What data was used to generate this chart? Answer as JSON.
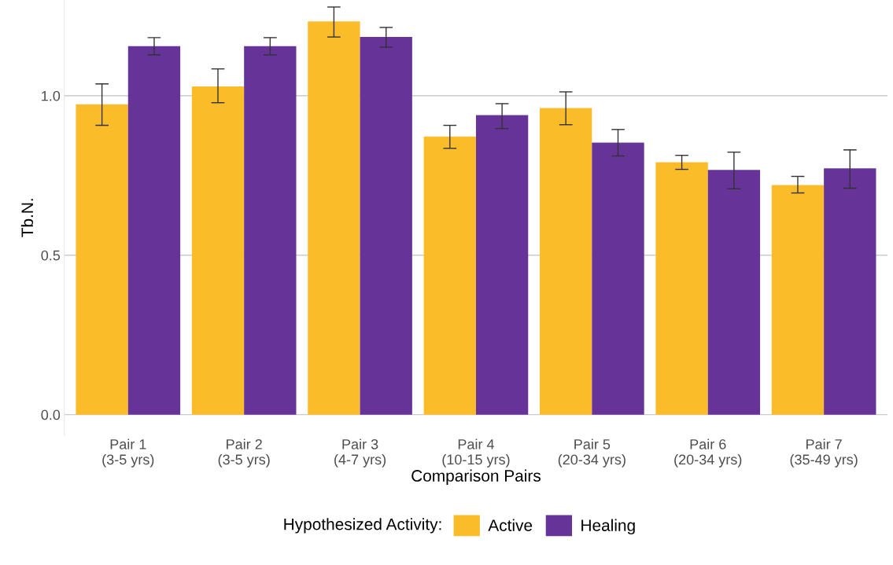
{
  "chart_data": {
    "type": "bar",
    "xlabel": "Comparison Pairs",
    "ylabel": "Tb.N.",
    "legend_title": "Hypothesized Activity:",
    "categories": [
      "Pair 1\n(3-5 yrs)",
      "Pair 2\n(3-5 yrs)",
      "Pair 3\n(4-7 yrs)",
      "Pair 4\n(10-15 yrs)",
      "Pair 5\n(20-34 yrs)",
      "Pair 6\n(20-34 yrs)",
      "Pair 7\n(35-49 yrs)"
    ],
    "series": [
      {
        "name": "Active",
        "color": "#fbbc2a",
        "values": [
          0.973,
          1.029,
          1.233,
          0.872,
          0.961,
          0.791,
          0.72
        ],
        "errors": [
          [
            0.907,
            1.037
          ],
          [
            0.978,
            1.084
          ],
          [
            1.184,
            1.278
          ],
          [
            0.835,
            0.907
          ],
          [
            0.909,
            1.012
          ],
          [
            0.769,
            0.813
          ],
          [
            0.695,
            0.747
          ]
        ]
      },
      {
        "name": "Healing",
        "color": "#663399",
        "values": [
          1.155,
          1.155,
          1.184,
          0.939,
          0.853,
          0.767,
          0.772
        ],
        "errors": [
          [
            1.128,
            1.182
          ],
          [
            1.128,
            1.182
          ],
          [
            1.152,
            1.214
          ],
          [
            0.897,
            0.975
          ],
          [
            0.811,
            0.894
          ],
          [
            0.708,
            0.823
          ],
          [
            0.71,
            0.83
          ]
        ]
      }
    ],
    "ylim": [
      -0.064,
      1.3
    ],
    "yticks": [
      {
        "value": 0,
        "label": "0.0"
      },
      {
        "value": 0.5,
        "label": "0.5"
      },
      {
        "value": 1,
        "label": "1.0"
      }
    ],
    "grid": "y",
    "legend": "bottom"
  }
}
